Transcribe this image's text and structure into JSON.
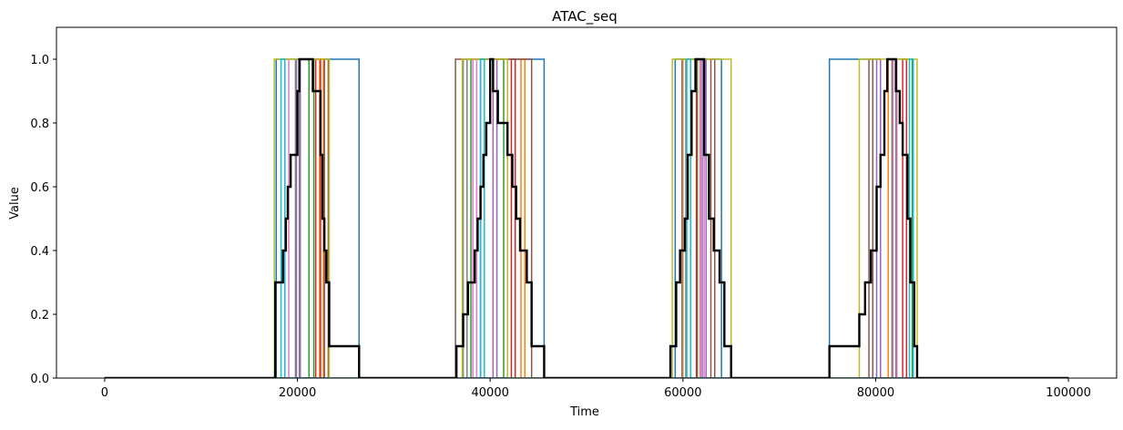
{
  "chart_data": {
    "type": "line",
    "title": "ATAC_seq",
    "xlabel": "Time",
    "ylabel": "Value",
    "xlim": [
      -5000,
      105000
    ],
    "ylim": [
      0.0,
      1.1
    ],
    "xticks": [
      0,
      20000,
      40000,
      60000,
      80000,
      100000
    ],
    "xtick_labels": [
      "0",
      "20000",
      "40000",
      "60000",
      "80000",
      "100000"
    ],
    "yticks": [
      0.0,
      0.2,
      0.4,
      0.6,
      0.8,
      1.0
    ],
    "ytick_labels": [
      "0.0",
      "0.2",
      "0.4",
      "0.6",
      "0.8",
      "1.0"
    ],
    "grid": false,
    "legend": false,
    "series": [
      {
        "color": "#1f77b4",
        "pulses": [
          [
            17800,
            26400
          ],
          [
            39000,
            45600
          ],
          [
            59200,
            64000
          ],
          [
            75200,
            80500
          ]
        ]
      },
      {
        "color": "#ff7f0e",
        "pulses": [
          [
            22300,
            22700
          ],
          [
            43200,
            43600
          ],
          [
            60000,
            61800
          ],
          [
            81300,
            81700
          ]
        ]
      },
      {
        "color": "#2ca02c",
        "pulses": [
          [
            21200,
            21700
          ],
          [
            38000,
            41400
          ],
          [
            60800,
            61500
          ],
          [
            82200,
            83800
          ]
        ]
      },
      {
        "color": "#d62728",
        "pulses": [
          [
            21900,
            22400
          ],
          [
            42200,
            42600
          ],
          [
            61400,
            61800
          ],
          [
            82800,
            83200
          ]
        ]
      },
      {
        "color": "#9467bd",
        "pulses": [
          [
            19900,
            20300
          ],
          [
            40300,
            40700
          ],
          [
            62000,
            62400
          ],
          [
            80100,
            80500
          ]
        ]
      },
      {
        "color": "#8c564b",
        "pulses": [
          [
            22800,
            23200
          ],
          [
            36400,
            44300
          ],
          [
            62900,
            63300
          ],
          [
            79300,
            79700
          ]
        ]
      },
      {
        "color": "#e377c2",
        "pulses": [
          [
            18700,
            19100
          ],
          [
            38200,
            38600
          ],
          [
            61800,
            62200
          ],
          [
            81800,
            82200
          ]
        ]
      },
      {
        "color": "#7f7f7f",
        "pulses": [
          [
            19800,
            20200
          ],
          [
            37200,
            37600
          ],
          [
            59900,
            60300
          ],
          [
            81700,
            82100
          ]
        ]
      },
      {
        "color": "#bcbd22",
        "pulses": [
          [
            17600,
            23300
          ],
          [
            37100,
            41800
          ],
          [
            58900,
            65000
          ],
          [
            78300,
            84300
          ]
        ]
      },
      {
        "color": "#17becf",
        "pulses": [
          [
            18300,
            18700
          ],
          [
            39000,
            39400
          ],
          [
            60400,
            60800
          ],
          [
            83500,
            83900
          ]
        ]
      }
    ],
    "mean_series": {
      "color": "#000000",
      "steps": [
        [
          0,
          0.0
        ],
        [
          17700,
          0.3
        ],
        [
          18500,
          0.4
        ],
        [
          18800,
          0.5
        ],
        [
          19000,
          0.6
        ],
        [
          19300,
          0.7
        ],
        [
          20000,
          0.9
        ],
        [
          20200,
          1.0
        ],
        [
          21600,
          0.9
        ],
        [
          22400,
          0.7
        ],
        [
          22600,
          0.5
        ],
        [
          22800,
          0.4
        ],
        [
          23000,
          0.3
        ],
        [
          23300,
          0.1
        ],
        [
          26400,
          0.0
        ],
        [
          36500,
          0.1
        ],
        [
          37200,
          0.2
        ],
        [
          37700,
          0.3
        ],
        [
          38400,
          0.4
        ],
        [
          38700,
          0.5
        ],
        [
          39000,
          0.6
        ],
        [
          39300,
          0.7
        ],
        [
          39600,
          0.8
        ],
        [
          40000,
          1.0
        ],
        [
          40300,
          0.9
        ],
        [
          40800,
          0.8
        ],
        [
          41800,
          0.7
        ],
        [
          42300,
          0.6
        ],
        [
          42700,
          0.5
        ],
        [
          43100,
          0.4
        ],
        [
          43800,
          0.3
        ],
        [
          44300,
          0.1
        ],
        [
          45600,
          0.0
        ],
        [
          58700,
          0.1
        ],
        [
          59300,
          0.3
        ],
        [
          59700,
          0.4
        ],
        [
          60200,
          0.5
        ],
        [
          60500,
          0.7
        ],
        [
          60900,
          0.9
        ],
        [
          61300,
          1.0
        ],
        [
          62200,
          0.7
        ],
        [
          62700,
          0.5
        ],
        [
          63200,
          0.4
        ],
        [
          63800,
          0.3
        ],
        [
          64300,
          0.1
        ],
        [
          65000,
          0.0
        ],
        [
          75200,
          0.1
        ],
        [
          78300,
          0.2
        ],
        [
          78900,
          0.3
        ],
        [
          79500,
          0.4
        ],
        [
          80100,
          0.6
        ],
        [
          80500,
          0.7
        ],
        [
          80900,
          0.9
        ],
        [
          81200,
          1.0
        ],
        [
          82100,
          0.9
        ],
        [
          82500,
          0.8
        ],
        [
          82800,
          0.7
        ],
        [
          83300,
          0.5
        ],
        [
          83600,
          0.3
        ],
        [
          84000,
          0.1
        ],
        [
          84300,
          0.0
        ],
        [
          100000,
          0.0
        ]
      ]
    }
  }
}
